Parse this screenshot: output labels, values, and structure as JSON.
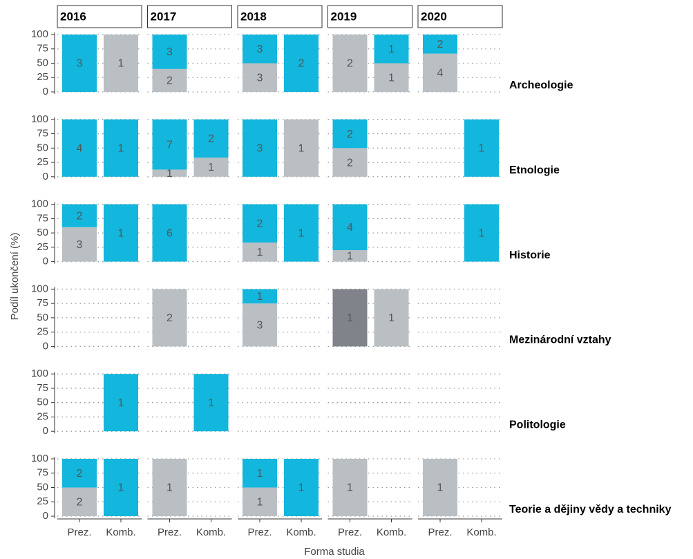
{
  "chart_data": {
    "type": "bar",
    "ylabel": "Podíl ukončení (%)",
    "xlabel": "Forma studia",
    "columns": [
      "2016",
      "2017",
      "2018",
      "2019",
      "2020"
    ],
    "categories": [
      "Prez.",
      "Komb."
    ],
    "ylim": [
      0,
      100
    ],
    "yticks": [
      0,
      25,
      50,
      75,
      100
    ],
    "grid": true,
    "facets": [
      {
        "label": "Archeologie",
        "cells": [
          [
            [
              {
                "color": "#13b6dc",
                "value": 100,
                "count": 3
              }
            ],
            [
              {
                "color": "#b9bfc3",
                "value": 100,
                "count": 1
              }
            ]
          ],
          [
            [
              {
                "color": "#b9bfc3",
                "value": 40,
                "count": 2
              },
              {
                "color": "#13b6dc",
                "value": 60,
                "count": 3
              }
            ],
            []
          ],
          [
            [
              {
                "color": "#b9bfc3",
                "value": 50,
                "count": 3
              },
              {
                "color": "#13b6dc",
                "value": 50,
                "count": 3
              }
            ],
            [
              {
                "color": "#13b6dc",
                "value": 100,
                "count": 2
              }
            ]
          ],
          [
            [
              {
                "color": "#b9bfc3",
                "value": 100,
                "count": 2
              }
            ],
            [
              {
                "color": "#b9bfc3",
                "value": 50,
                "count": 1
              },
              {
                "color": "#13b6dc",
                "value": 50,
                "count": 1
              }
            ]
          ],
          [
            [
              {
                "color": "#b9bfc3",
                "value": 66.7,
                "count": 4
              },
              {
                "color": "#13b6dc",
                "value": 33.3,
                "count": 2
              }
            ],
            []
          ]
        ]
      },
      {
        "label": "Etnologie",
        "cells": [
          [
            [
              {
                "color": "#13b6dc",
                "value": 100,
                "count": 4
              }
            ],
            [
              {
                "color": "#13b6dc",
                "value": 100,
                "count": 1
              }
            ]
          ],
          [
            [
              {
                "color": "#b9bfc3",
                "value": 12.5,
                "count": 1
              },
              {
                "color": "#13b6dc",
                "value": 87.5,
                "count": 7
              }
            ],
            [
              {
                "color": "#b9bfc3",
                "value": 33.3,
                "count": 1
              },
              {
                "color": "#13b6dc",
                "value": 66.7,
                "count": 2
              }
            ]
          ],
          [
            [
              {
                "color": "#13b6dc",
                "value": 100,
                "count": 3
              }
            ],
            [
              {
                "color": "#b9bfc3",
                "value": 100,
                "count": 1
              }
            ]
          ],
          [
            [
              {
                "color": "#b9bfc3",
                "value": 50,
                "count": 2
              },
              {
                "color": "#13b6dc",
                "value": 50,
                "count": 2
              }
            ],
            []
          ],
          [
            [],
            [
              {
                "color": "#13b6dc",
                "value": 100,
                "count": 1
              }
            ]
          ]
        ]
      },
      {
        "label": "Historie",
        "cells": [
          [
            [
              {
                "color": "#b9bfc3",
                "value": 60,
                "count": 3
              },
              {
                "color": "#13b6dc",
                "value": 40,
                "count": 2
              }
            ],
            [
              {
                "color": "#13b6dc",
                "value": 100,
                "count": 1
              }
            ]
          ],
          [
            [
              {
                "color": "#13b6dc",
                "value": 100,
                "count": 6
              }
            ],
            []
          ],
          [
            [
              {
                "color": "#b9bfc3",
                "value": 33.3,
                "count": 1
              },
              {
                "color": "#13b6dc",
                "value": 66.7,
                "count": 2
              }
            ],
            [
              {
                "color": "#13b6dc",
                "value": 100,
                "count": 1
              }
            ]
          ],
          [
            [
              {
                "color": "#b9bfc3",
                "value": 20,
                "count": 1
              },
              {
                "color": "#13b6dc",
                "value": 80,
                "count": 4
              }
            ],
            []
          ],
          [
            [],
            [
              {
                "color": "#13b6dc",
                "value": 100,
                "count": 1
              }
            ]
          ]
        ]
      },
      {
        "label": "Mezinárodní vztahy",
        "cells": [
          [
            [],
            []
          ],
          [
            [
              {
                "color": "#b9bfc3",
                "value": 100,
                "count": 2
              }
            ],
            []
          ],
          [
            [
              {
                "color": "#b9bfc3",
                "value": 75,
                "count": 3
              },
              {
                "color": "#13b6dc",
                "value": 25,
                "count": 1
              }
            ],
            []
          ],
          [
            [
              {
                "color": "#808389",
                "value": 100,
                "count": 1
              }
            ],
            [
              {
                "color": "#b9bfc3",
                "value": 100,
                "count": 1
              }
            ]
          ],
          [
            [],
            []
          ]
        ]
      },
      {
        "label": "Politologie",
        "cells": [
          [
            [],
            [
              {
                "color": "#13b6dc",
                "value": 100,
                "count": 1
              }
            ]
          ],
          [
            [],
            [
              {
                "color": "#13b6dc",
                "value": 100,
                "count": 1
              }
            ]
          ],
          [
            [],
            []
          ],
          [
            [],
            []
          ],
          [
            [],
            []
          ]
        ]
      },
      {
        "label": "Teorie a dějiny vědy a techniky",
        "cells": [
          [
            [
              {
                "color": "#b9bfc3",
                "value": 50,
                "count": 2
              },
              {
                "color": "#13b6dc",
                "value": 50,
                "count": 2
              }
            ],
            [
              {
                "color": "#13b6dc",
                "value": 100,
                "count": 1
              }
            ]
          ],
          [
            [
              {
                "color": "#b9bfc3",
                "value": 100,
                "count": 1
              }
            ],
            []
          ],
          [
            [
              {
                "color": "#b9bfc3",
                "value": 50,
                "count": 1
              },
              {
                "color": "#13b6dc",
                "value": 50,
                "count": 1
              }
            ],
            [
              {
                "color": "#13b6dc",
                "value": 100,
                "count": 1
              }
            ]
          ],
          [
            [
              {
                "color": "#b9bfc3",
                "value": 100,
                "count": 1
              }
            ],
            []
          ],
          [
            [
              {
                "color": "#b9bfc3",
                "value": 100,
                "count": 1
              }
            ],
            []
          ]
        ]
      }
    ]
  }
}
